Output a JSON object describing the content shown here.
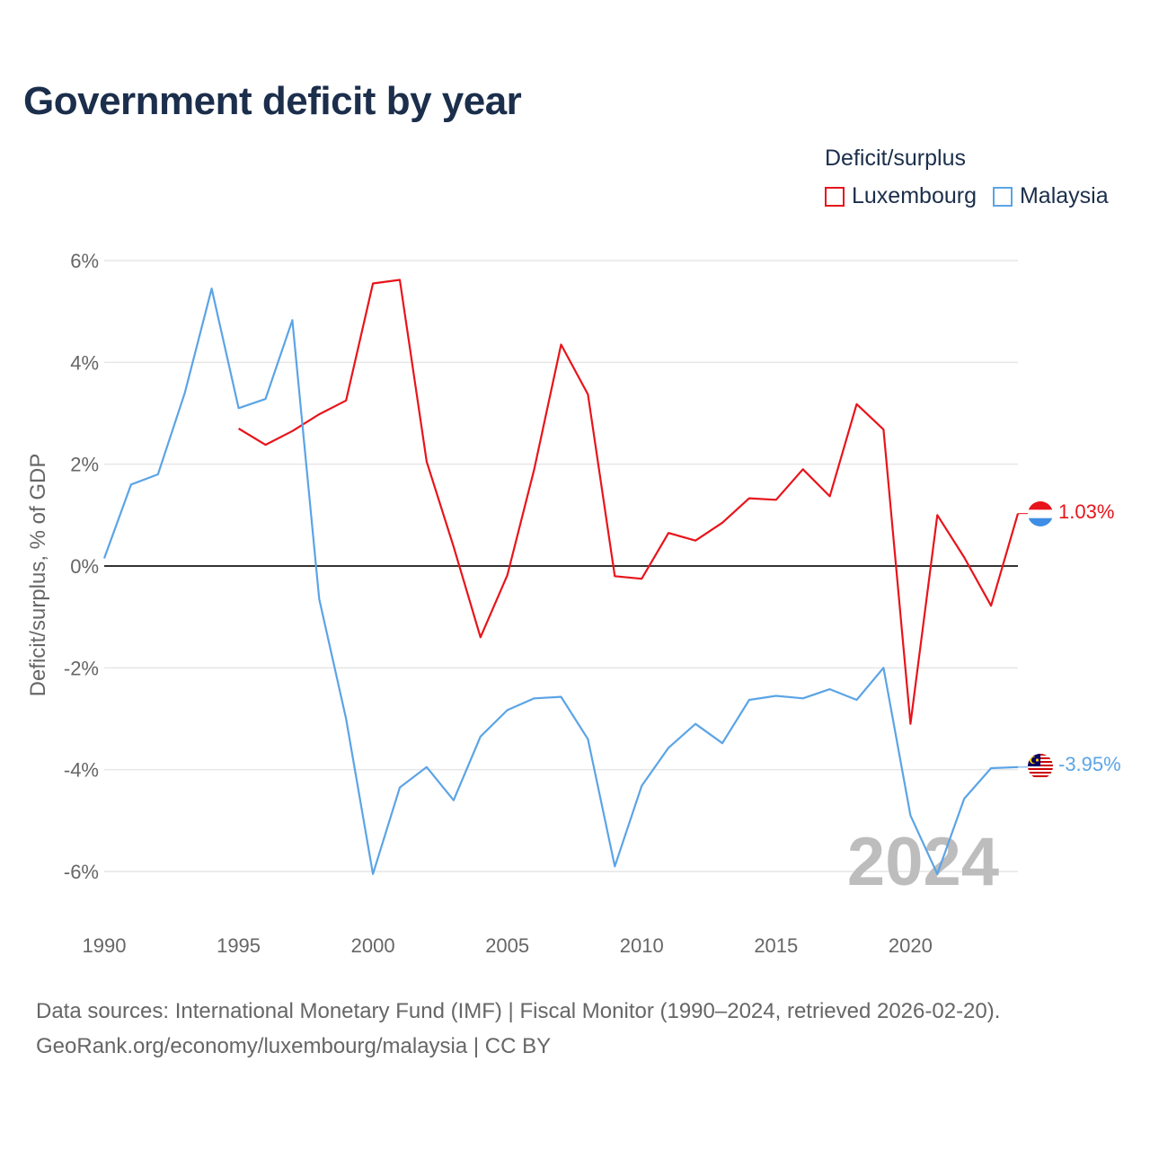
{
  "title": "Government deficit by year",
  "legend": {
    "title": "Deficit/surplus",
    "items": [
      {
        "label": "Luxembourg",
        "color": "#e8141b"
      },
      {
        "label": "Malaysia",
        "color": "#5ba4e6"
      }
    ]
  },
  "year_label": "2024",
  "source": {
    "line1": "Data sources: International Monetary Fund (IMF) | Fiscal Monitor (1990–2024, retrieved 2026-02-20).",
    "line2": "GeoRank.org/economy/luxembourg/malaysia | CC BY"
  },
  "chart_data": {
    "type": "line",
    "title": "Government deficit by year",
    "xlabel": "",
    "ylabel": "Deficit/surplus, % of GDP",
    "xlim": [
      1990,
      2024
    ],
    "ylim": [
      -7,
      6
    ],
    "xticks": [
      1990,
      1995,
      2000,
      2005,
      2010,
      2015,
      2020
    ],
    "xtick_labels": [
      "1990",
      "1995",
      "2000",
      "2005",
      "2010",
      "2015",
      "2020"
    ],
    "yticks": [
      -6,
      -4,
      -2,
      0,
      2,
      4,
      6
    ],
    "ytick_labels": [
      "-6%",
      "-4%",
      "-2%",
      "0%",
      "2%",
      "4%",
      "6%"
    ],
    "grid": true,
    "series": [
      {
        "name": "Luxembourg",
        "color": "#e8141b",
        "end_label": "1.03%",
        "x": [
          1995,
          1996,
          1997,
          1998,
          1999,
          2000,
          2001,
          2002,
          2003,
          2004,
          2005,
          2006,
          2007,
          2008,
          2009,
          2010,
          2011,
          2012,
          2013,
          2014,
          2015,
          2016,
          2017,
          2018,
          2019,
          2020,
          2021,
          2022,
          2023,
          2024
        ],
        "values": [
          2.7,
          2.38,
          2.65,
          2.98,
          3.25,
          5.55,
          5.62,
          2.05,
          0.38,
          -1.4,
          -0.18,
          1.9,
          4.35,
          3.37,
          -0.2,
          -0.25,
          0.65,
          0.5,
          0.85,
          1.33,
          1.3,
          1.9,
          1.37,
          3.18,
          2.68,
          -3.1,
          1.0,
          0.17,
          -0.78,
          1.03
        ]
      },
      {
        "name": "Malaysia",
        "color": "#5ba4e6",
        "end_label": "-3.95%",
        "x": [
          1990,
          1991,
          1992,
          1993,
          1994,
          1995,
          1996,
          1997,
          1998,
          1999,
          2000,
          2001,
          2002,
          2003,
          2004,
          2005,
          2006,
          2007,
          2008,
          2009,
          2010,
          2011,
          2012,
          2013,
          2014,
          2015,
          2016,
          2017,
          2018,
          2019,
          2020,
          2021,
          2022,
          2023,
          2024
        ],
        "values": [
          0.15,
          1.6,
          1.8,
          3.4,
          5.45,
          3.1,
          3.28,
          4.83,
          -0.65,
          -3.0,
          -6.05,
          -4.35,
          -3.95,
          -4.6,
          -3.35,
          -2.83,
          -2.6,
          -2.57,
          -3.4,
          -5.9,
          -4.32,
          -3.57,
          -3.1,
          -3.48,
          -2.63,
          -2.55,
          -2.6,
          -2.42,
          -2.63,
          -2.0,
          -4.9,
          -6.05,
          -4.57,
          -3.97,
          -3.95
        ]
      }
    ]
  }
}
